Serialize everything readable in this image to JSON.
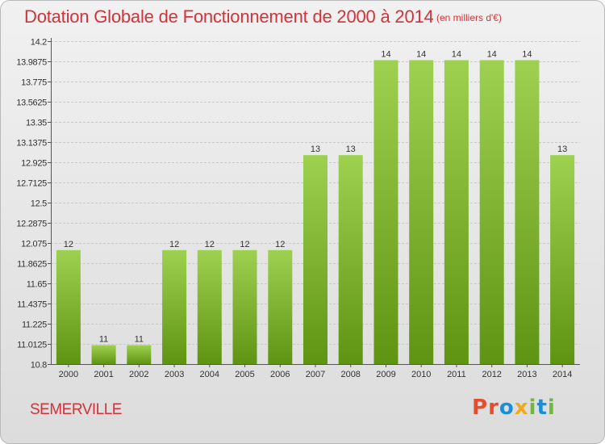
{
  "header": {
    "title": "Dotation Globale de Fonctionnement de 2000 à 2014",
    "subtitle": "(en milliers d'€)"
  },
  "footer": {
    "commune": "SEMERVILLE",
    "logo_text": "Proxiti"
  },
  "colors": {
    "bar_light": "#9ed14f",
    "bar_dark": "#5f9412",
    "title": "#d2333a"
  },
  "chart_data": {
    "type": "bar",
    "title": "Dotation Globale de Fonctionnement de 2000 à 2014",
    "xlabel": "",
    "ylabel": "",
    "categories": [
      "2000",
      "2001",
      "2002",
      "2003",
      "2004",
      "2005",
      "2006",
      "2007",
      "2008",
      "2009",
      "2010",
      "2011",
      "2012",
      "2013",
      "2014"
    ],
    "values": [
      12,
      11,
      11,
      12,
      12,
      12,
      12,
      13,
      13,
      14,
      14,
      14,
      14,
      14,
      13
    ],
    "labels": [
      "12",
      "11",
      "11",
      "12",
      "12",
      "12",
      "12",
      "13",
      "13",
      "14",
      "14",
      "14",
      "14",
      "14",
      "13"
    ],
    "ylim": [
      10.8,
      14.2
    ],
    "yticks": [
      10.8,
      11.0125,
      11.225,
      11.4375,
      11.65,
      11.8625,
      12.075,
      12.2875,
      12.5,
      12.7125,
      12.925,
      13.1375,
      13.35,
      13.5625,
      13.775,
      13.9875,
      14.2
    ],
    "ytick_labels": [
      "10.8",
      "11.0125",
      "11.225",
      "11.4375",
      "11.65",
      "11.8625",
      "12.075",
      "12.2875",
      "12.5",
      "12.7125",
      "12.925",
      "13.1375",
      "13.35",
      "13.5625",
      "13.775",
      "13.9875",
      "14.2"
    ],
    "grid": true
  }
}
